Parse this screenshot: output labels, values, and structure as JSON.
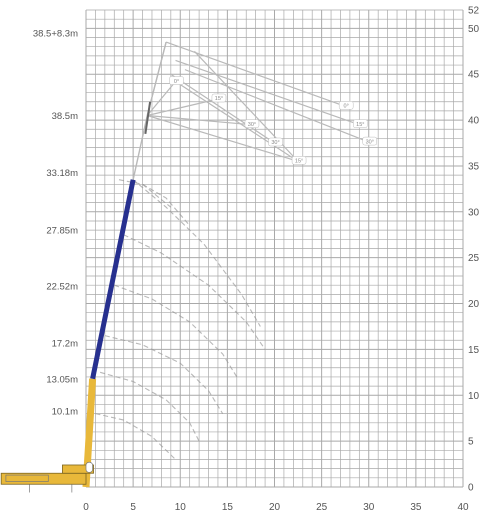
{
  "chart_data": {
    "type": "line",
    "title": "",
    "xlabel": "",
    "ylabel": "",
    "xlim": [
      0,
      40
    ],
    "ylim": [
      0,
      52
    ],
    "grid": true,
    "x_ticks": [
      "0",
      "5",
      "10",
      "15",
      "20",
      "25",
      "30",
      "35",
      "40"
    ],
    "y_ticks": [
      "0",
      "5",
      "10",
      "15",
      "20",
      "25",
      "30",
      "35",
      "40",
      "45",
      "50",
      "52"
    ],
    "colors": {
      "grid": "#a9a9a9",
      "text": "#555555",
      "base_section": "#e8b83a",
      "telescopic_section": "#27308f",
      "jib": "#b9b9b9",
      "radius_curve": "#9a9a9a"
    },
    "boom_length_labels": [
      {
        "text": "38.5+8.3m",
        "height": 49.5
      },
      {
        "text": "38.5m",
        "height": 40.5
      },
      {
        "text": "33.18m",
        "height": 34.3
      },
      {
        "text": "27.85m",
        "height": 28.0
      },
      {
        "text": "22.52m",
        "height": 21.9
      },
      {
        "text": "17.2m",
        "height": 15.7
      },
      {
        "text": "13.05m",
        "height": 11.8
      },
      {
        "text": "10.1m",
        "height": 8.3
      }
    ],
    "boom_sections": [
      {
        "name": "base",
        "from": [
          0,
          0
        ],
        "to": [
          0.7,
          11.8
        ]
      },
      {
        "name": "telescopic",
        "from": [
          0.7,
          11.8
        ],
        "to": [
          5.0,
          33.5
        ]
      }
    ],
    "jib_offset_angles": [
      "0°",
      "15°",
      "30°"
    ],
    "jib_tip_points": [
      {
        "x": 8.5,
        "y": 48.5,
        "label": ""
      },
      {
        "x": 9.5,
        "y": 44.2,
        "label": "0°"
      },
      {
        "x": 14.0,
        "y": 42.3,
        "label": "15°"
      },
      {
        "x": 17.5,
        "y": 39.5,
        "label": "30°"
      },
      {
        "x": 20.0,
        "y": 37.5,
        "label": "30°"
      },
      {
        "x": 22.5,
        "y": 35.5,
        "label": "15°"
      },
      {
        "x": 27.5,
        "y": 41.5,
        "label": "0°"
      },
      {
        "x": 29.0,
        "y": 39.5,
        "label": "15°"
      },
      {
        "x": 30.0,
        "y": 37.6,
        "label": "30°"
      }
    ],
    "radius_arcs": [
      {
        "x": [
          5.0,
          8.5,
          12.5,
          16.5,
          18.5
        ],
        "y": [
          33.5,
          30.5,
          26.5,
          21.0,
          17.5
        ]
      },
      {
        "x": [
          4.0,
          8.0,
          13.0,
          17.0,
          19.0
        ],
        "y": [
          27.5,
          25.5,
          22.0,
          18.0,
          15.0
        ]
      },
      {
        "x": [
          3.0,
          7.0,
          11.0,
          14.5,
          16.0
        ],
        "y": [
          22.0,
          20.5,
          18.0,
          14.5,
          12.0
        ]
      },
      {
        "x": [
          2.0,
          6.0,
          10.0,
          13.0,
          14.5
        ],
        "y": [
          16.5,
          15.5,
          13.5,
          10.5,
          8.0
        ]
      },
      {
        "x": [
          1.5,
          5.0,
          8.5,
          11.0,
          12.0
        ],
        "y": [
          12.5,
          11.5,
          9.5,
          7.0,
          5.0
        ]
      },
      {
        "x": [
          1.0,
          4.0,
          7.0,
          9.5
        ],
        "y": [
          8.0,
          7.3,
          5.5,
          3.0
        ]
      },
      {
        "x": [
          3.5,
          6.0,
          9.0
        ],
        "y": [
          33.5,
          33.0,
          30.5
        ]
      },
      {
        "x": [
          6.0,
          8.5,
          11.0
        ],
        "y": [
          33.0,
          31.5,
          28.5
        ]
      }
    ],
    "jib_rays": [
      {
        "x": [
          6.5,
          8.5
        ],
        "y": [
          40.5,
          48.5
        ]
      },
      {
        "x": [
          6.5,
          9.5
        ],
        "y": [
          40.5,
          44.2
        ]
      },
      {
        "x": [
          6.5,
          14.0
        ],
        "y": [
          40.5,
          42.3
        ]
      },
      {
        "x": [
          6.5,
          17.5
        ],
        "y": [
          40.5,
          39.5
        ]
      },
      {
        "x": [
          8.5,
          27.5
        ],
        "y": [
          48.5,
          41.5
        ]
      },
      {
        "x": [
          9.5,
          29.0
        ],
        "y": [
          46.5,
          39.5
        ]
      },
      {
        "x": [
          10.5,
          30.0
        ],
        "y": [
          45.5,
          37.6
        ]
      },
      {
        "x": [
          9.5,
          22.5
        ],
        "y": [
          44.2,
          35.5
        ]
      },
      {
        "x": [
          9.0,
          20.0
        ],
        "y": [
          45.0,
          37.5
        ]
      },
      {
        "x": [
          11.5,
          22.5
        ],
        "y": [
          47.5,
          35.5
        ]
      },
      {
        "x": [
          6.5,
          22.5
        ],
        "y": [
          40.5,
          35.5
        ]
      }
    ]
  }
}
